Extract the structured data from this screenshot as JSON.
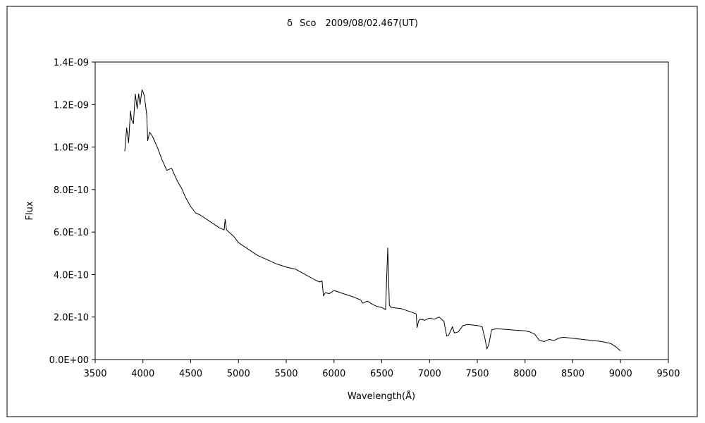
{
  "chart_data": {
    "type": "line",
    "title": "δ Sco　2009/08/02.467(UT)",
    "xlabel": "Wavelength(Å)",
    "ylabel": "Flux",
    "xlim": [
      3500,
      9500
    ],
    "ylim": [
      0,
      1.4e-09
    ],
    "x_ticks": [
      3500,
      4000,
      4500,
      5000,
      5500,
      6000,
      6500,
      7000,
      7500,
      8000,
      8500,
      9000,
      9500
    ],
    "x_tick_labels": [
      "3500",
      "4000",
      "4500",
      "5000",
      "5500",
      "6000",
      "6500",
      "7000",
      "7500",
      "8000",
      "8500",
      "9000",
      "9500"
    ],
    "y_ticks": [
      0,
      2e-10,
      4e-10,
      6e-10,
      8e-10,
      1e-09,
      1.2e-09,
      1.4e-09
    ],
    "y_tick_labels": [
      "0.0E+00",
      "2.0E-10",
      "4.0E-10",
      "6.0E-10",
      "8.0E-10",
      "1.0E-09",
      "1.2E-09",
      "1.4E-09"
    ],
    "grid": false,
    "legend": "none",
    "line_color": "#000000",
    "series": [
      {
        "x": [
          3810,
          3830,
          3850,
          3870,
          3880,
          3900,
          3920,
          3940,
          3955,
          3970,
          3990,
          4000,
          4015,
          4040,
          4050,
          4070,
          4100,
          4150,
          4200,
          4250,
          4300,
          4340,
          4360,
          4400,
          4450,
          4500,
          4550,
          4600,
          4700,
          4800,
          4850,
          4861,
          4875,
          4900,
          4950,
          5000,
          5100,
          5200,
          5300,
          5400,
          5500,
          5600,
          5700,
          5800,
          5850,
          5875,
          5890,
          5910,
          5950,
          6000,
          6100,
          6200,
          6280,
          6300,
          6350,
          6400,
          6450,
          6500,
          6540,
          6563,
          6580,
          6600,
          6700,
          6800,
          6860,
          6870,
          6885,
          6900,
          6950,
          7000,
          7050,
          7100,
          7150,
          7180,
          7200,
          7240,
          7260,
          7300,
          7350,
          7400,
          7500,
          7550,
          7580,
          7600,
          7620,
          7650,
          7700,
          7800,
          7900,
          8000,
          8050,
          8100,
          8150,
          8200,
          8250,
          8300,
          8350,
          8400,
          8500,
          8600,
          8700,
          8800,
          8850,
          8900,
          8950,
          9000
        ],
        "y": [
          9.8e-10,
          1.09e-09,
          1.02e-09,
          1.17e-09,
          1.13e-09,
          1.11e-09,
          1.25e-09,
          1.18e-09,
          1.25e-09,
          1.2e-09,
          1.27e-09,
          1.26e-09,
          1.24e-09,
          1.15e-09,
          1.03e-09,
          1.07e-09,
          1.05e-09,
          1e-09,
          9.4e-10,
          8.9e-10,
          9e-10,
          8.6e-10,
          8.4e-10,
          8.1e-10,
          7.6e-10,
          7.2e-10,
          6.9e-10,
          6.8e-10,
          6.5e-10,
          6.2e-10,
          6.1e-10,
          6.6e-10,
          6.1e-10,
          6e-10,
          5.8e-10,
          5.5e-10,
          5.2e-10,
          4.9e-10,
          4.7e-10,
          4.5e-10,
          4.35e-10,
          4.25e-10,
          4e-10,
          3.75e-10,
          3.65e-10,
          3.7e-10,
          3e-10,
          3.15e-10,
          3.1e-10,
          3.25e-10,
          3.1e-10,
          2.95e-10,
          2.8e-10,
          2.65e-10,
          2.75e-10,
          2.6e-10,
          2.5e-10,
          2.45e-10,
          2.35e-10,
          5.25e-10,
          2.55e-10,
          2.45e-10,
          2.4e-10,
          2.25e-10,
          2.15e-10,
          1.5e-10,
          1.8e-10,
          1.9e-10,
          1.85e-10,
          1.95e-10,
          1.9e-10,
          2e-10,
          1.8e-10,
          1.1e-10,
          1.15e-10,
          1.55e-10,
          1.25e-10,
          1.3e-10,
          1.6e-10,
          1.65e-10,
          1.6e-10,
          1.55e-10,
          1e-10,
          5e-11,
          7e-11,
          1.4e-10,
          1.45e-10,
          1.42e-10,
          1.38e-10,
          1.35e-10,
          1.3e-10,
          1.2e-10,
          9e-11,
          8.5e-11,
          9.5e-11,
          9e-11,
          1e-10,
          1.05e-10,
          1e-10,
          9.5e-11,
          9e-11,
          8.5e-11,
          8e-11,
          7.5e-11,
          6e-11,
          4e-11
        ]
      }
    ]
  }
}
